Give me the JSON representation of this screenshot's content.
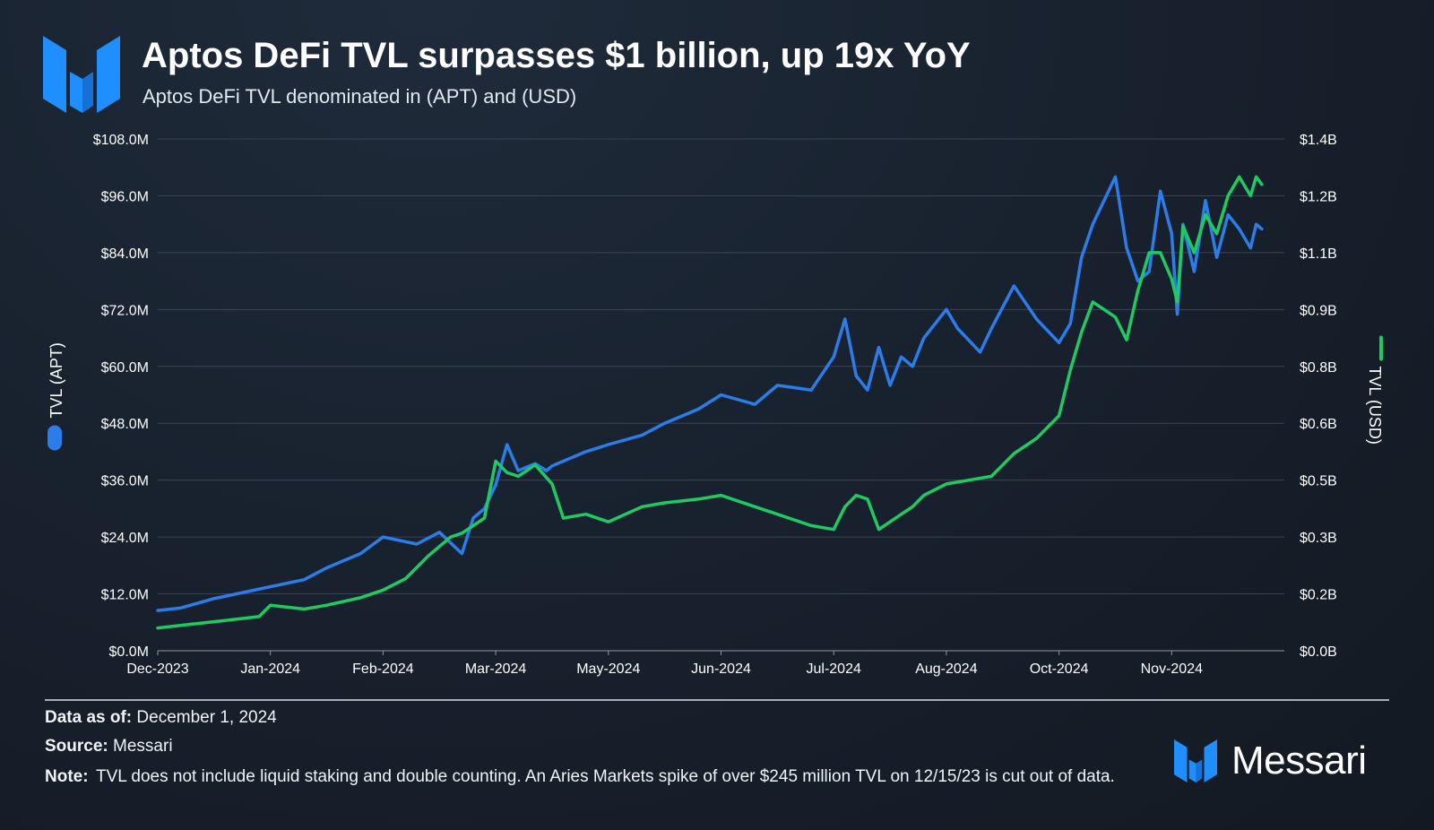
{
  "header": {
    "title": "Aptos DeFi TVL surpasses $1 billion, up 19x YoY",
    "subtitle": "Aptos DeFi TVL denominated in (APT) and (USD)"
  },
  "colors": {
    "apt": "#2b7de9",
    "usd": "#1ecb62",
    "grid": "#3a4553",
    "accent": "#1f8fff"
  },
  "footer": {
    "data_as_of_label": "Data as of:",
    "data_as_of_value": "December 1, 2024",
    "source_label": "Source:",
    "source_value": "Messari",
    "note_label": "Note:",
    "note_value": "TVL does not include liquid staking and double counting. An Aries Markets spike of over $245 million TVL on 12/15/23 is cut out of data.",
    "brand": "Messari"
  },
  "chart_data": {
    "type": "line",
    "x_ticks": [
      "Dec-2023",
      "Jan-2024",
      "Feb-2024",
      "Mar-2024",
      "May-2024",
      "Jun-2024",
      "Jul-2024",
      "Aug-2024",
      "Oct-2024",
      "Nov-2024"
    ],
    "y_left": {
      "label": "TVL (APT)",
      "ticks": [
        "$0.0M",
        "$12.0M",
        "$24.0M",
        "$36.0M",
        "$48.0M",
        "$60.0M",
        "$72.0M",
        "$84.0M",
        "$96.0M",
        "$108.0M"
      ],
      "range": [
        0,
        108
      ]
    },
    "y_right": {
      "label": "TVL (USD)",
      "ticks": [
        "$0.0B",
        "$0.2B",
        "$0.3B",
        "$0.5B",
        "$0.6B",
        "$0.8B",
        "$0.9B",
        "$1.1B",
        "$1.2B",
        "$1.4B"
      ],
      "range": [
        0,
        1.35
      ]
    },
    "grid": true,
    "series": [
      {
        "name": "TVL (APT)",
        "axis": "left",
        "x": [
          0,
          0.2,
          0.5,
          0.8,
          1.0,
          1.3,
          1.5,
          1.8,
          2.0,
          2.3,
          2.5,
          2.7,
          2.8,
          2.9,
          3.0,
          3.1,
          3.2,
          3.35,
          3.45,
          3.5,
          3.6,
          3.8,
          4.0,
          4.3,
          4.5,
          4.8,
          5.0,
          5.3,
          5.5,
          5.8,
          6.0,
          6.1,
          6.2,
          6.3,
          6.4,
          6.5,
          6.6,
          6.7,
          6.8,
          7.0,
          7.1,
          7.3,
          7.4,
          7.6,
          7.8,
          8.0,
          8.1,
          8.2,
          8.3,
          8.4,
          8.5,
          8.6,
          8.7,
          8.8,
          8.9,
          9.0,
          9.05,
          9.1,
          9.2,
          9.3,
          9.4,
          9.5,
          9.6,
          9.7,
          9.75,
          9.8
        ],
        "values": [
          8.5,
          9.0,
          11.0,
          12.5,
          13.5,
          15.0,
          17.5,
          20.5,
          24.0,
          22.5,
          25.0,
          20.5,
          28.0,
          30.0,
          35.0,
          43.5,
          38.0,
          39.5,
          38.0,
          39.0,
          40.0,
          42.0,
          43.5,
          45.5,
          48.0,
          51.0,
          54.0,
          52.0,
          56.0,
          55.0,
          62.0,
          70.0,
          58.0,
          55.0,
          64.0,
          56.0,
          62.0,
          60.0,
          66.0,
          72.0,
          68.0,
          63.0,
          68.0,
          77.0,
          70.0,
          65.0,
          69.0,
          83.0,
          90.0,
          95.0,
          100.0,
          85.0,
          78.0,
          80.0,
          97.0,
          88.0,
          71.0,
          90.0,
          80.0,
          95.0,
          83.0,
          92.0,
          89.0,
          85.0,
          90.0,
          89.0
        ]
      },
      {
        "name": "TVL (USD)",
        "axis": "right",
        "x": [
          0,
          0.3,
          0.6,
          0.9,
          1.0,
          1.3,
          1.5,
          1.8,
          2.0,
          2.2,
          2.4,
          2.6,
          2.7,
          2.8,
          2.9,
          3.0,
          3.1,
          3.2,
          3.35,
          3.5,
          3.6,
          3.8,
          4.0,
          4.3,
          4.5,
          4.8,
          5.0,
          5.3,
          5.5,
          5.8,
          6.0,
          6.1,
          6.2,
          6.3,
          6.4,
          6.5,
          6.6,
          6.7,
          6.8,
          7.0,
          7.2,
          7.4,
          7.6,
          7.8,
          8.0,
          8.1,
          8.2,
          8.3,
          8.4,
          8.5,
          8.6,
          8.7,
          8.8,
          8.9,
          9.0,
          9.05,
          9.1,
          9.2,
          9.3,
          9.4,
          9.5,
          9.6,
          9.7,
          9.75,
          9.8
        ],
        "values": [
          0.06,
          0.07,
          0.08,
          0.09,
          0.12,
          0.11,
          0.12,
          0.14,
          0.16,
          0.19,
          0.25,
          0.3,
          0.31,
          0.33,
          0.35,
          0.5,
          0.47,
          0.46,
          0.49,
          0.44,
          0.35,
          0.36,
          0.34,
          0.38,
          0.39,
          0.4,
          0.41,
          0.38,
          0.36,
          0.33,
          0.32,
          0.38,
          0.41,
          0.4,
          0.32,
          0.34,
          0.36,
          0.38,
          0.41,
          0.44,
          0.45,
          0.46,
          0.52,
          0.56,
          0.62,
          0.74,
          0.84,
          0.92,
          0.9,
          0.88,
          0.82,
          0.95,
          1.05,
          1.05,
          0.98,
          0.92,
          1.12,
          1.05,
          1.15,
          1.1,
          1.2,
          1.25,
          1.2,
          1.25,
          1.23
        ]
      }
    ]
  }
}
